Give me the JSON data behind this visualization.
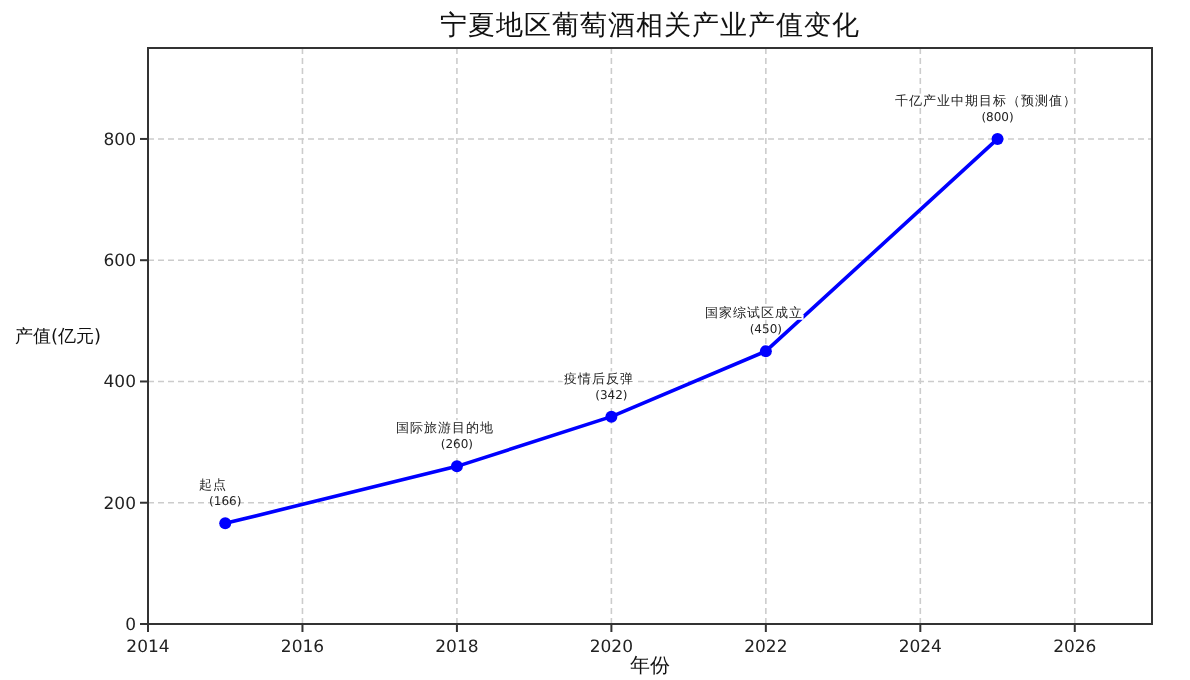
{
  "chart_data": {
    "type": "line",
    "title": "宁夏地区葡萄酒相关产业产值变化",
    "xlabel": "年份",
    "ylabel": "产值(亿元)",
    "x": [
      2015,
      2018,
      2020,
      2022,
      2025
    ],
    "series": [
      {
        "color": "#0000ff",
        "values": [
          166,
          260,
          342,
          450,
          800
        ],
        "value_labels": [
          "(166)",
          "(260)",
          "(342)",
          "(450)",
          "(800)"
        ]
      }
    ],
    "annotations": [
      {
        "text": "起点",
        "x": 2015,
        "y": 166
      },
      {
        "text": "国际旅游目的地",
        "x": 2018,
        "y": 260
      },
      {
        "text": "疫情后反弹",
        "x": 2020,
        "y": 342
      },
      {
        "text": "国家综试区成立",
        "x": 2022,
        "y": 450
      },
      {
        "text": "千亿产业中期目标（预测值）",
        "x": 2025,
        "y": 800
      }
    ],
    "xlim": [
      2014,
      2027
    ],
    "xticks": [
      2014,
      2016,
      2018,
      2020,
      2022,
      2024,
      2026
    ],
    "ylim": [
      0,
      950
    ],
    "yticks": [
      0,
      200,
      400,
      600,
      800
    ],
    "grid": true,
    "marker": "circle",
    "line_style": "solid"
  }
}
